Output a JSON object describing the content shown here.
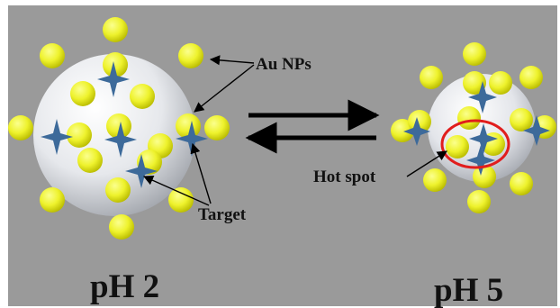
{
  "labels": {
    "au_nps": "Au NPs",
    "target": "Target",
    "hot_spot": "Hot spot",
    "ph_left": "pH 2",
    "ph_right": "pH 5"
  },
  "colors": {
    "background": "#9a9a9a",
    "sphere_highlight": "#ffffff",
    "sphere_shadow": "#8e8e8e",
    "nanoparticle": "#eef22c",
    "nanoparticle_shadow": "#b7b800",
    "target_star": "#3d6a9a",
    "hot_spot_ring": "#e11d1d",
    "arrows": "#000000"
  },
  "icons": {
    "nanoparticle": "yellow-sphere-icon",
    "target": "four-point-star-icon"
  }
}
